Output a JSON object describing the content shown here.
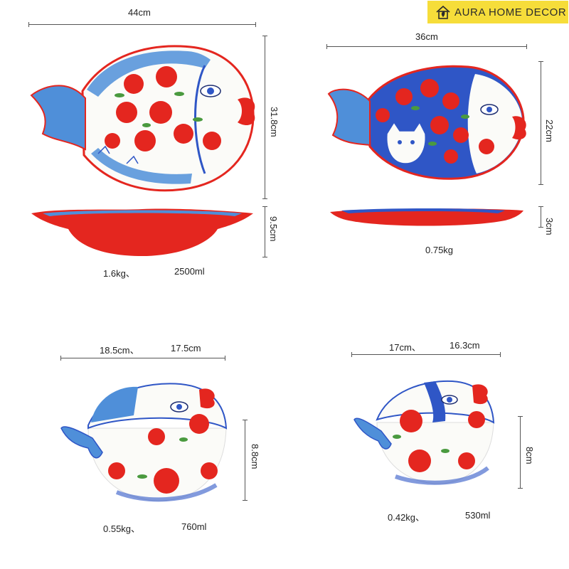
{
  "brand": {
    "name": "AURA HOME DECOR",
    "icon": "house-leaf-logo-icon",
    "background": "#f6dd3a"
  },
  "products": {
    "large_plate": {
      "width": "44cm",
      "length": "31.8cm",
      "depth": "9.5cm",
      "weight": "1.6kg、",
      "capacity": "2500ml"
    },
    "medium_plate": {
      "width": "36cm",
      "length": "22cm",
      "depth": "3cm",
      "weight": "0.75kg"
    },
    "large_bowl": {
      "size_a": "18.5cm、",
      "size_b": "17.5cm",
      "height": "8.8cm",
      "weight": "0.55kg、",
      "capacity": "760ml"
    },
    "small_bowl": {
      "size_a": "17cm、",
      "size_b": "16.3cm",
      "height": "8cm",
      "weight": "0.42kg、",
      "capacity": "530ml"
    }
  },
  "colors": {
    "red": "#e4261f",
    "blue": "#2f56c6",
    "light_blue": "#4f8fd9",
    "white": "#fbfbf8",
    "green": "#4a9a3f"
  }
}
